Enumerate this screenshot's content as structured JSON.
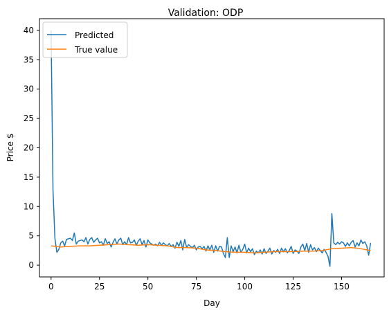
{
  "chart_data": {
    "type": "line",
    "title": "Validation: ODP",
    "xlabel": "Day",
    "ylabel": "Price $",
    "xlim": [
      -6,
      172
    ],
    "ylim": [
      -2,
      42
    ],
    "xticks": [
      0,
      25,
      50,
      75,
      100,
      125,
      150
    ],
    "yticks": [
      0,
      5,
      10,
      15,
      20,
      25,
      30,
      35,
      40
    ],
    "grid": false,
    "legend_position": "top-left",
    "series": [
      {
        "name": "Predicted",
        "color": "#1f77b4",
        "x": [
          0,
          1,
          2,
          3,
          4,
          5,
          6,
          7,
          8,
          9,
          10,
          11,
          12,
          13,
          14,
          15,
          16,
          17,
          18,
          19,
          20,
          21,
          22,
          23,
          24,
          25,
          26,
          27,
          28,
          29,
          30,
          31,
          32,
          33,
          34,
          35,
          36,
          37,
          38,
          39,
          40,
          41,
          42,
          43,
          44,
          45,
          46,
          47,
          48,
          49,
          50,
          51,
          52,
          53,
          54,
          55,
          56,
          57,
          58,
          59,
          60,
          61,
          62,
          63,
          64,
          65,
          66,
          67,
          68,
          69,
          70,
          71,
          72,
          73,
          74,
          75,
          76,
          77,
          78,
          79,
          80,
          81,
          82,
          83,
          84,
          85,
          86,
          87,
          88,
          89,
          90,
          91,
          92,
          93,
          94,
          95,
          96,
          97,
          98,
          99,
          100,
          101,
          102,
          103,
          104,
          105,
          106,
          107,
          108,
          109,
          110,
          111,
          112,
          113,
          114,
          115,
          116,
          117,
          118,
          119,
          120,
          121,
          122,
          123,
          124,
          125,
          126,
          127,
          128,
          129,
          130,
          131,
          132,
          133,
          134,
          135,
          136,
          137,
          138,
          139,
          140,
          141,
          142,
          143,
          144,
          145,
          146,
          147,
          148,
          149,
          150,
          151,
          152,
          153,
          154,
          155,
          156,
          157,
          158,
          159,
          160,
          161,
          162,
          163,
          164,
          165
        ],
        "values": [
          40,
          12.7,
          4.5,
          2.2,
          2.7,
          3.8,
          4.1,
          3.3,
          4.4,
          4.5,
          4.6,
          4.2,
          5.5,
          3.6,
          4.1,
          4.2,
          4.3,
          4.0,
          4.7,
          3.6,
          4.4,
          4.7,
          3.9,
          4.3,
          4.6,
          3.8,
          4.0,
          3.4,
          4.5,
          3.7,
          4.0,
          3.1,
          3.9,
          4.5,
          3.6,
          4.3,
          4.6,
          3.5,
          4.0,
          3.5,
          4.7,
          3.8,
          3.9,
          4.3,
          3.4,
          4.1,
          4.5,
          3.5,
          4.2,
          3.1,
          4.3,
          3.8,
          3.6,
          3.4,
          3.6,
          3.3,
          3.9,
          3.4,
          3.8,
          3.5,
          3.3,
          3.7,
          3.2,
          3.5,
          2.9,
          3.9,
          3.2,
          4.2,
          2.6,
          4.4,
          3.0,
          3.5,
          3.2,
          3.0,
          3.4,
          2.6,
          3.1,
          3.2,
          2.8,
          3.2,
          2.4,
          3.3,
          2.6,
          3.4,
          2.2,
          3.3,
          2.4,
          3.2,
          3.1,
          2.0,
          1.3,
          4.7,
          1.3,
          3.3,
          2.3,
          3.1,
          2.1,
          3.4,
          2.2,
          2.7,
          3.6,
          2.1,
          2.9,
          2.3,
          2.8,
          1.8,
          2.4,
          2.1,
          2.6,
          1.9,
          2.8,
          2.0,
          2.4,
          2.9,
          1.9,
          2.5,
          2.2,
          2.7,
          2.0,
          2.9,
          2.3,
          2.8,
          2.1,
          2.5,
          3.2,
          2.0,
          2.6,
          2.4,
          2.0,
          3.1,
          3.6,
          2.5,
          3.7,
          2.2,
          3.5,
          2.6,
          3.0,
          2.3,
          2.9,
          2.5,
          2.1,
          2.7,
          2.2,
          1.5,
          -0.2,
          8.8,
          3.8,
          3.5,
          3.9,
          3.6,
          4.0,
          3.8,
          3.2,
          3.8,
          3.3,
          3.9,
          4.2,
          3.1,
          3.8,
          3.3,
          4.3,
          3.7,
          4.0,
          3.3,
          1.7,
          3.8
        ]
      },
      {
        "name": "True value",
        "color": "#ff7f0e",
        "x": [
          0,
          5,
          10,
          15,
          20,
          25,
          30,
          35,
          40,
          45,
          50,
          55,
          60,
          65,
          70,
          75,
          80,
          85,
          90,
          95,
          100,
          105,
          110,
          115,
          120,
          125,
          130,
          135,
          140,
          145,
          150,
          155,
          160,
          165
        ],
        "values": [
          3.3,
          3.1,
          3.2,
          3.3,
          3.3,
          3.4,
          3.5,
          3.6,
          3.5,
          3.4,
          3.5,
          3.4,
          3.3,
          3.0,
          3.0,
          2.9,
          2.6,
          2.5,
          2.3,
          2.2,
          2.2,
          2.1,
          2.2,
          2.3,
          2.3,
          2.3,
          2.4,
          2.4,
          2.5,
          2.8,
          2.9,
          3.0,
          2.8,
          2.5
        ]
      }
    ]
  }
}
